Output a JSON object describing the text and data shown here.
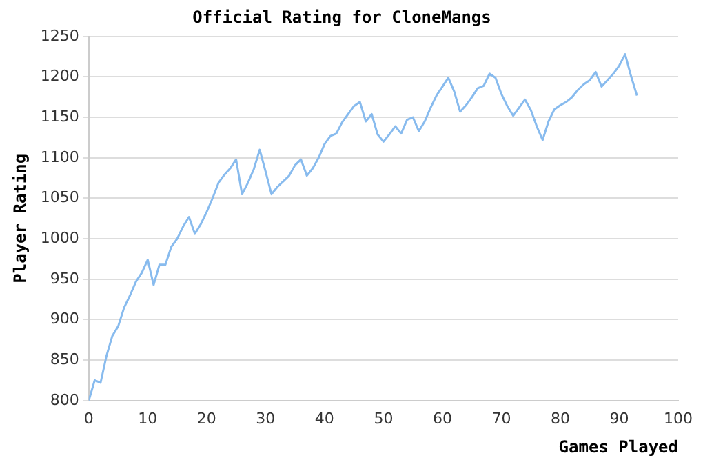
{
  "chart_data": {
    "type": "line",
    "title": "Official Rating for CloneMangs",
    "xlabel": "Games Played",
    "ylabel": "Player Rating",
    "x": [
      0,
      1,
      2,
      3,
      4,
      5,
      6,
      7,
      8,
      9,
      10,
      11,
      12,
      13,
      14,
      15,
      16,
      17,
      18,
      19,
      20,
      21,
      22,
      23,
      24,
      25,
      26,
      27,
      28,
      29,
      30,
      31,
      32,
      33,
      34,
      35,
      36,
      37,
      38,
      39,
      40,
      41,
      42,
      43,
      44,
      45,
      46,
      47,
      48,
      49,
      50,
      51,
      52,
      53,
      54,
      55,
      56,
      57,
      58,
      59,
      60,
      61,
      62,
      63,
      64,
      65,
      66,
      67,
      68,
      69,
      70,
      71,
      72,
      73,
      74,
      75,
      76,
      77,
      78,
      79,
      80,
      81,
      82,
      83,
      84,
      85,
      86,
      87,
      88,
      89,
      90,
      91,
      92,
      93
    ],
    "series": [
      {
        "color": "#88bbee",
        "values": [
          800,
          825,
          822,
          855,
          880,
          892,
          915,
          930,
          947,
          958,
          974,
          943,
          968,
          968,
          990,
          1000,
          1015,
          1027,
          1006,
          1018,
          1033,
          1050,
          1069,
          1079,
          1087,
          1098,
          1055,
          1069,
          1086,
          1110,
          1083,
          1055,
          1064,
          1071,
          1078,
          1091,
          1098,
          1078,
          1087,
          1100,
          1117,
          1127,
          1130,
          1144,
          1154,
          1164,
          1169,
          1145,
          1154,
          1129,
          1120,
          1129,
          1139,
          1130,
          1147,
          1150,
          1133,
          1145,
          1162,
          1177,
          1188,
          1199,
          1182,
          1157,
          1165,
          1175,
          1186,
          1189,
          1204,
          1199,
          1179,
          1164,
          1152,
          1162,
          1172,
          1159,
          1139,
          1122,
          1145,
          1160,
          1165,
          1169,
          1175,
          1184,
          1191,
          1196,
          1206,
          1188,
          1196,
          1204,
          1214,
          1228,
          1201,
          1177
        ]
      }
    ],
    "xlim": [
      0,
      100
    ],
    "xticks": [
      0,
      10,
      20,
      30,
      40,
      50,
      60,
      70,
      80,
      90,
      100
    ],
    "ylim": [
      800,
      1250
    ],
    "yticks": [
      800,
      850,
      900,
      950,
      1000,
      1050,
      1100,
      1150,
      1200,
      1250
    ],
    "grid": "y",
    "legend": false,
    "marker": "none",
    "line_style": "solid"
  }
}
